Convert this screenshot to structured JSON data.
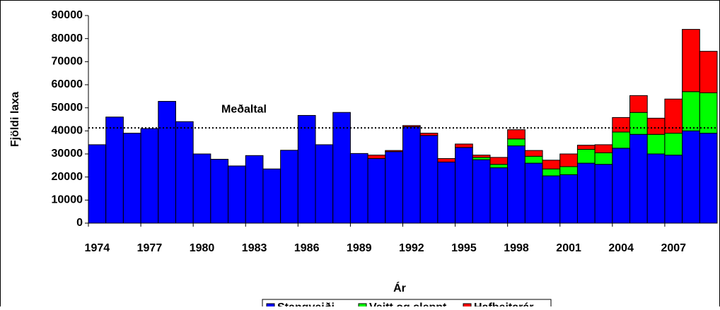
{
  "chart_data": {
    "type": "stacked_bar",
    "x_label": "Ár",
    "y_label": "Fjöldi laxa",
    "categories": [
      1974,
      null,
      null,
      1977,
      null,
      null,
      1980,
      null,
      null,
      1983,
      null,
      null,
      1986,
      null,
      null,
      1989,
      null,
      null,
      1992,
      null,
      null,
      1995,
      null,
      null,
      1998,
      null,
      null,
      2001,
      null,
      null,
      2004,
      null,
      null,
      2007,
      null,
      null
    ],
    "series": [
      {
        "name": "Stangveiði",
        "color": "#0000ff",
        "values": [
          34000,
          46000,
          39000,
          41000,
          52800,
          44000,
          30000,
          27700,
          24800,
          29300,
          23500,
          31600,
          46700,
          34000,
          48000,
          30200,
          28000,
          31000,
          41800,
          38000,
          26500,
          32800,
          27500,
          24000,
          33500,
          26000,
          20500,
          21000,
          26000,
          25500,
          32500,
          38500,
          30000,
          29500,
          40000,
          39000
        ]
      },
      {
        "name": "Veitt og sleppt",
        "color": "#00ff00",
        "values": [
          0,
          0,
          0,
          0,
          0,
          0,
          0,
          0,
          0,
          0,
          0,
          0,
          0,
          0,
          0,
          0,
          0,
          0,
          0,
          0,
          0,
          0,
          1000,
          1500,
          3000,
          3000,
          3000,
          3500,
          6000,
          5000,
          7000,
          9500,
          8500,
          9500,
          17000,
          17500
        ]
      },
      {
        "name": "Hafbeitarár",
        "color": "#ff0000",
        "values": [
          0,
          0,
          0,
          0,
          0,
          0,
          0,
          0,
          0,
          0,
          0,
          0,
          0,
          0,
          0,
          0,
          1500,
          500,
          500,
          1000,
          1500,
          1500,
          1000,
          3000,
          4000,
          2500,
          3800,
          5500,
          1800,
          3500,
          6300,
          7300,
          7000,
          14800,
          27000,
          18000
        ]
      }
    ],
    "average": 41300,
    "average_label": "Meðaltal",
    "ylim": [
      0,
      90000
    ],
    "yticks": [
      0,
      10000,
      20000,
      30000,
      40000,
      50000,
      60000,
      70000,
      80000,
      90000
    ],
    "legend": "bottom"
  }
}
